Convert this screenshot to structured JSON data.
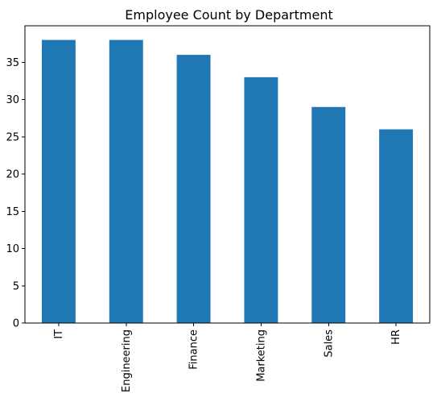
{
  "chart_data": {
    "type": "bar",
    "title": "Employee Count by Department",
    "xlabel": "",
    "ylabel": "",
    "categories": [
      "IT",
      "Engineering",
      "Finance",
      "Marketing",
      "Sales",
      "HR"
    ],
    "values": [
      38,
      38,
      36,
      33,
      29,
      26
    ],
    "ylim": [
      0,
      39.9
    ],
    "yticks": [
      0,
      5,
      10,
      15,
      20,
      25,
      30,
      35
    ],
    "grid": false,
    "legend": "none",
    "bar_color": "#1f77b4",
    "x_tick_rotation": 90
  }
}
